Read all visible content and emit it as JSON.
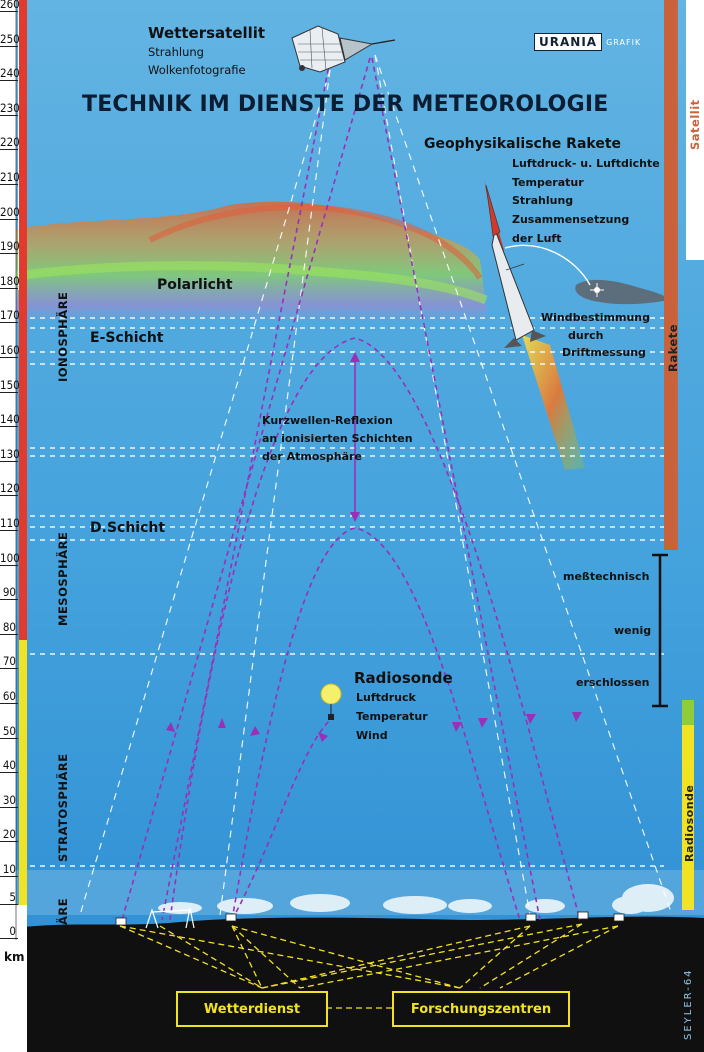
{
  "title": "TECHNIK IM DIENSTE DER METEOROLOGIE",
  "publisher": {
    "brand": "URANIA",
    "sub": "GRAFIK"
  },
  "signature": "SEYLER-64",
  "scale": {
    "unit": "km",
    "ticks": [
      "260",
      "250",
      "240",
      "230",
      "220",
      "210",
      "200",
      "190",
      "180",
      "170",
      "160",
      "150",
      "140",
      "130",
      "120",
      "110",
      "100",
      "90",
      "80",
      "70",
      "60",
      "50",
      "40",
      "30",
      "20",
      "10",
      "5",
      "0"
    ]
  },
  "layers": {
    "ionosphere": "IONOSPHÄRE",
    "mesosphere": "MESOSPHÄRE",
    "stratosphere": "STRATOSPHÄRE",
    "troposphere": "TROPOSPHÄRE"
  },
  "satellite": {
    "name": "Wettersatellit",
    "lines": [
      "Strahlung",
      "Wolkenfotografie"
    ]
  },
  "rocket": {
    "name": "Geophysikalische Rakete",
    "lines": [
      "Luftdruck- u. Luftdichte",
      "Temperatur",
      "Strahlung",
      "Zusammensetzung",
      "der Luft"
    ]
  },
  "wind": [
    "Windbestimmung",
    "durch",
    "Driftmessung"
  ],
  "aurora": "Polarlicht",
  "e_layer": "E-Schicht",
  "d_layer": "D.Schicht",
  "shortwave": [
    "Kurzwellen-Reflexion",
    "an ionisierten Schichten",
    "der Atmosphäre"
  ],
  "radiosonde": {
    "name": "Radiosonde",
    "lines": [
      "Luftdruck",
      "Temperatur",
      "Wind"
    ]
  },
  "measured": [
    "meßtechnisch",
    "wenig",
    "erschlossen"
  ],
  "right_bars": {
    "satellite": "Satellit",
    "rocket": "Rakete",
    "radiosonde": "Radiosonde"
  },
  "boxes": {
    "weather_service": "Wetterdienst",
    "research": "Forschungszentren"
  },
  "colors": {
    "sky_top": "#5fb0df",
    "sky_bottom": "#2f8fd2",
    "ground": "#111111",
    "accent_yellow": "#f2e224",
    "signal": "#9a2fb8",
    "rocket_bar": "#c9623a",
    "scale_red": "#d83a2a"
  }
}
